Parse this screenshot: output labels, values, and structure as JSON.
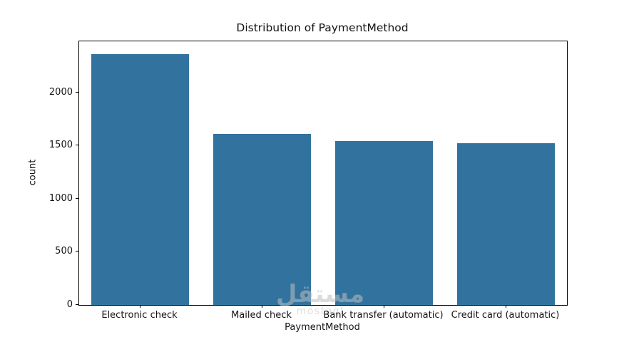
{
  "chart_data": {
    "type": "bar",
    "title": "Distribution of PaymentMethod",
    "xlabel": "PaymentMethod",
    "ylabel": "count",
    "categories": [
      "Electronic check",
      "Mailed check",
      "Bank transfer (automatic)",
      "Credit card (automatic)"
    ],
    "values": [
      2365,
      1612,
      1544,
      1522
    ],
    "yticks": [
      0,
      500,
      1000,
      1500,
      2000
    ],
    "ylim": [
      0,
      2483
    ],
    "bar_color": "#31739E",
    "bar_width_fraction": 0.8,
    "grid": false,
    "legend": null,
    "background": "#ffffff",
    "spine_color": "#000000"
  },
  "watermark": {
    "arabic": "مستقل",
    "latin": "mostaql"
  }
}
